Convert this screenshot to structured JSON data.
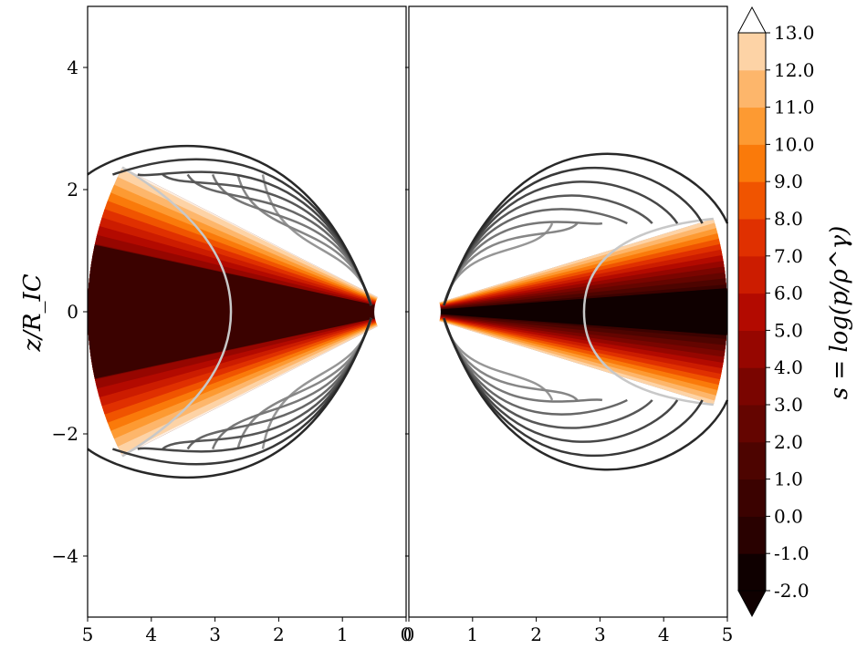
{
  "chart_data": {
    "type": "heatmap",
    "ylabel": "z/R_IC",
    "colorbar_label": "s = log(p/ρ^γ)",
    "colormap": "gist_heat_r",
    "panels": [
      {
        "name": "left",
        "x_ticks": [
          "5",
          "4",
          "3",
          "2",
          "1",
          "0"
        ],
        "x_values": [
          5,
          4,
          3,
          2,
          1,
          0
        ],
        "xlim": [
          5,
          0
        ],
        "ylim": [
          -5,
          5
        ],
        "y_ticks": [
          "4",
          "2",
          "0",
          "−2",
          "−4"
        ],
        "y_values": [
          4,
          2,
          0,
          -2,
          -4
        ],
        "outer_radius": 5,
        "half_angle_deg": 27,
        "inner_radius": 0.5,
        "stream_lines": 8
      },
      {
        "name": "right",
        "x_ticks": [
          "0",
          "1",
          "2",
          "3",
          "4",
          "5"
        ],
        "x_values": [
          0,
          1,
          2,
          3,
          4,
          5
        ],
        "xlim": [
          0,
          5
        ],
        "ylim": [
          -5,
          5
        ],
        "outer_radius": 5,
        "half_angle_deg": 17,
        "inner_radius": 0.5,
        "stream_lines": 8
      }
    ],
    "colorbar": {
      "ticks": [
        "13.0",
        "12.0",
        "11.0",
        "10.0",
        "9.0",
        "8.0",
        "7.0",
        "6.0",
        "5.0",
        "4.0",
        "3.0",
        "2.0",
        "1.0",
        "0.0",
        "-1.0",
        "-2.0"
      ],
      "values": [
        13,
        12,
        11,
        10,
        9,
        8,
        7,
        6,
        5,
        4,
        3,
        2,
        1,
        0,
        -1,
        -2
      ],
      "extend": "both",
      "colors": [
        "#0f0000",
        "#290100",
        "#3b0200",
        "#4d0400",
        "#640500",
        "#7a0500",
        "#960600",
        "#b30a00",
        "#cc1c00",
        "#e03000",
        "#f05400",
        "#fa7a0a",
        "#fd9a32",
        "#fdb66b",
        "#fdd3a6",
        "#fdefe2"
      ]
    }
  }
}
